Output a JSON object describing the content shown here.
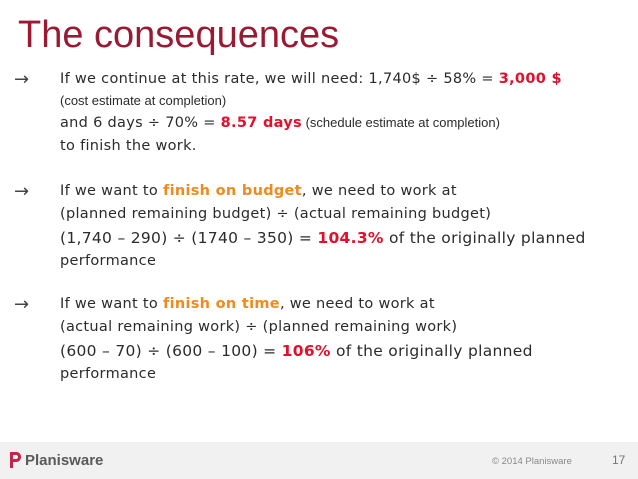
{
  "title": "The consequences",
  "bullets": [
    {
      "arrow": "→",
      "line1": {
        "text": "If we continue at this rate, we will need: 1,740$ ÷ 58% = ",
        "highlight": "3,000 $"
      },
      "line2": "(cost estimate at completion)",
      "line3": {
        "text": "and 6 days ÷ 70% = ",
        "highlight": "8.57 days",
        "after": " (schedule estimate at completion)"
      },
      "line4": "to finish the work."
    },
    {
      "arrow": "→",
      "line1": {
        "before": "If we want to ",
        "highlight": "finish on budget",
        "after": ", we need to work at"
      },
      "line2": "(planned remaining budget) ÷ (actual remaining budget)",
      "line3": {
        "text": "(1,740 – 290) ÷ (1740 – 350) = ",
        "highlight": "104.3%",
        "after": " of the originally planned"
      },
      "line4": "performance"
    },
    {
      "arrow": "→",
      "line1": {
        "before": "If we want to ",
        "highlight": "finish on time",
        "after": ", we need to work at"
      },
      "line2": "(actual remaining work) ÷ (planned remaining work)",
      "line3": {
        "text": "(600 – 70) ÷ (600 – 100) = ",
        "highlight": "106%",
        "after": " of the originally planned"
      },
      "line4": "performance"
    }
  ],
  "footer": {
    "logo_text": "Planisware",
    "copyright": "© 2014 Planisware",
    "page_number": "17"
  },
  "colors": {
    "title": "#9b1a33",
    "highlight_red": "#e3102c",
    "highlight_orange": "#f08a1c",
    "logo_mark": "#c0254a"
  }
}
